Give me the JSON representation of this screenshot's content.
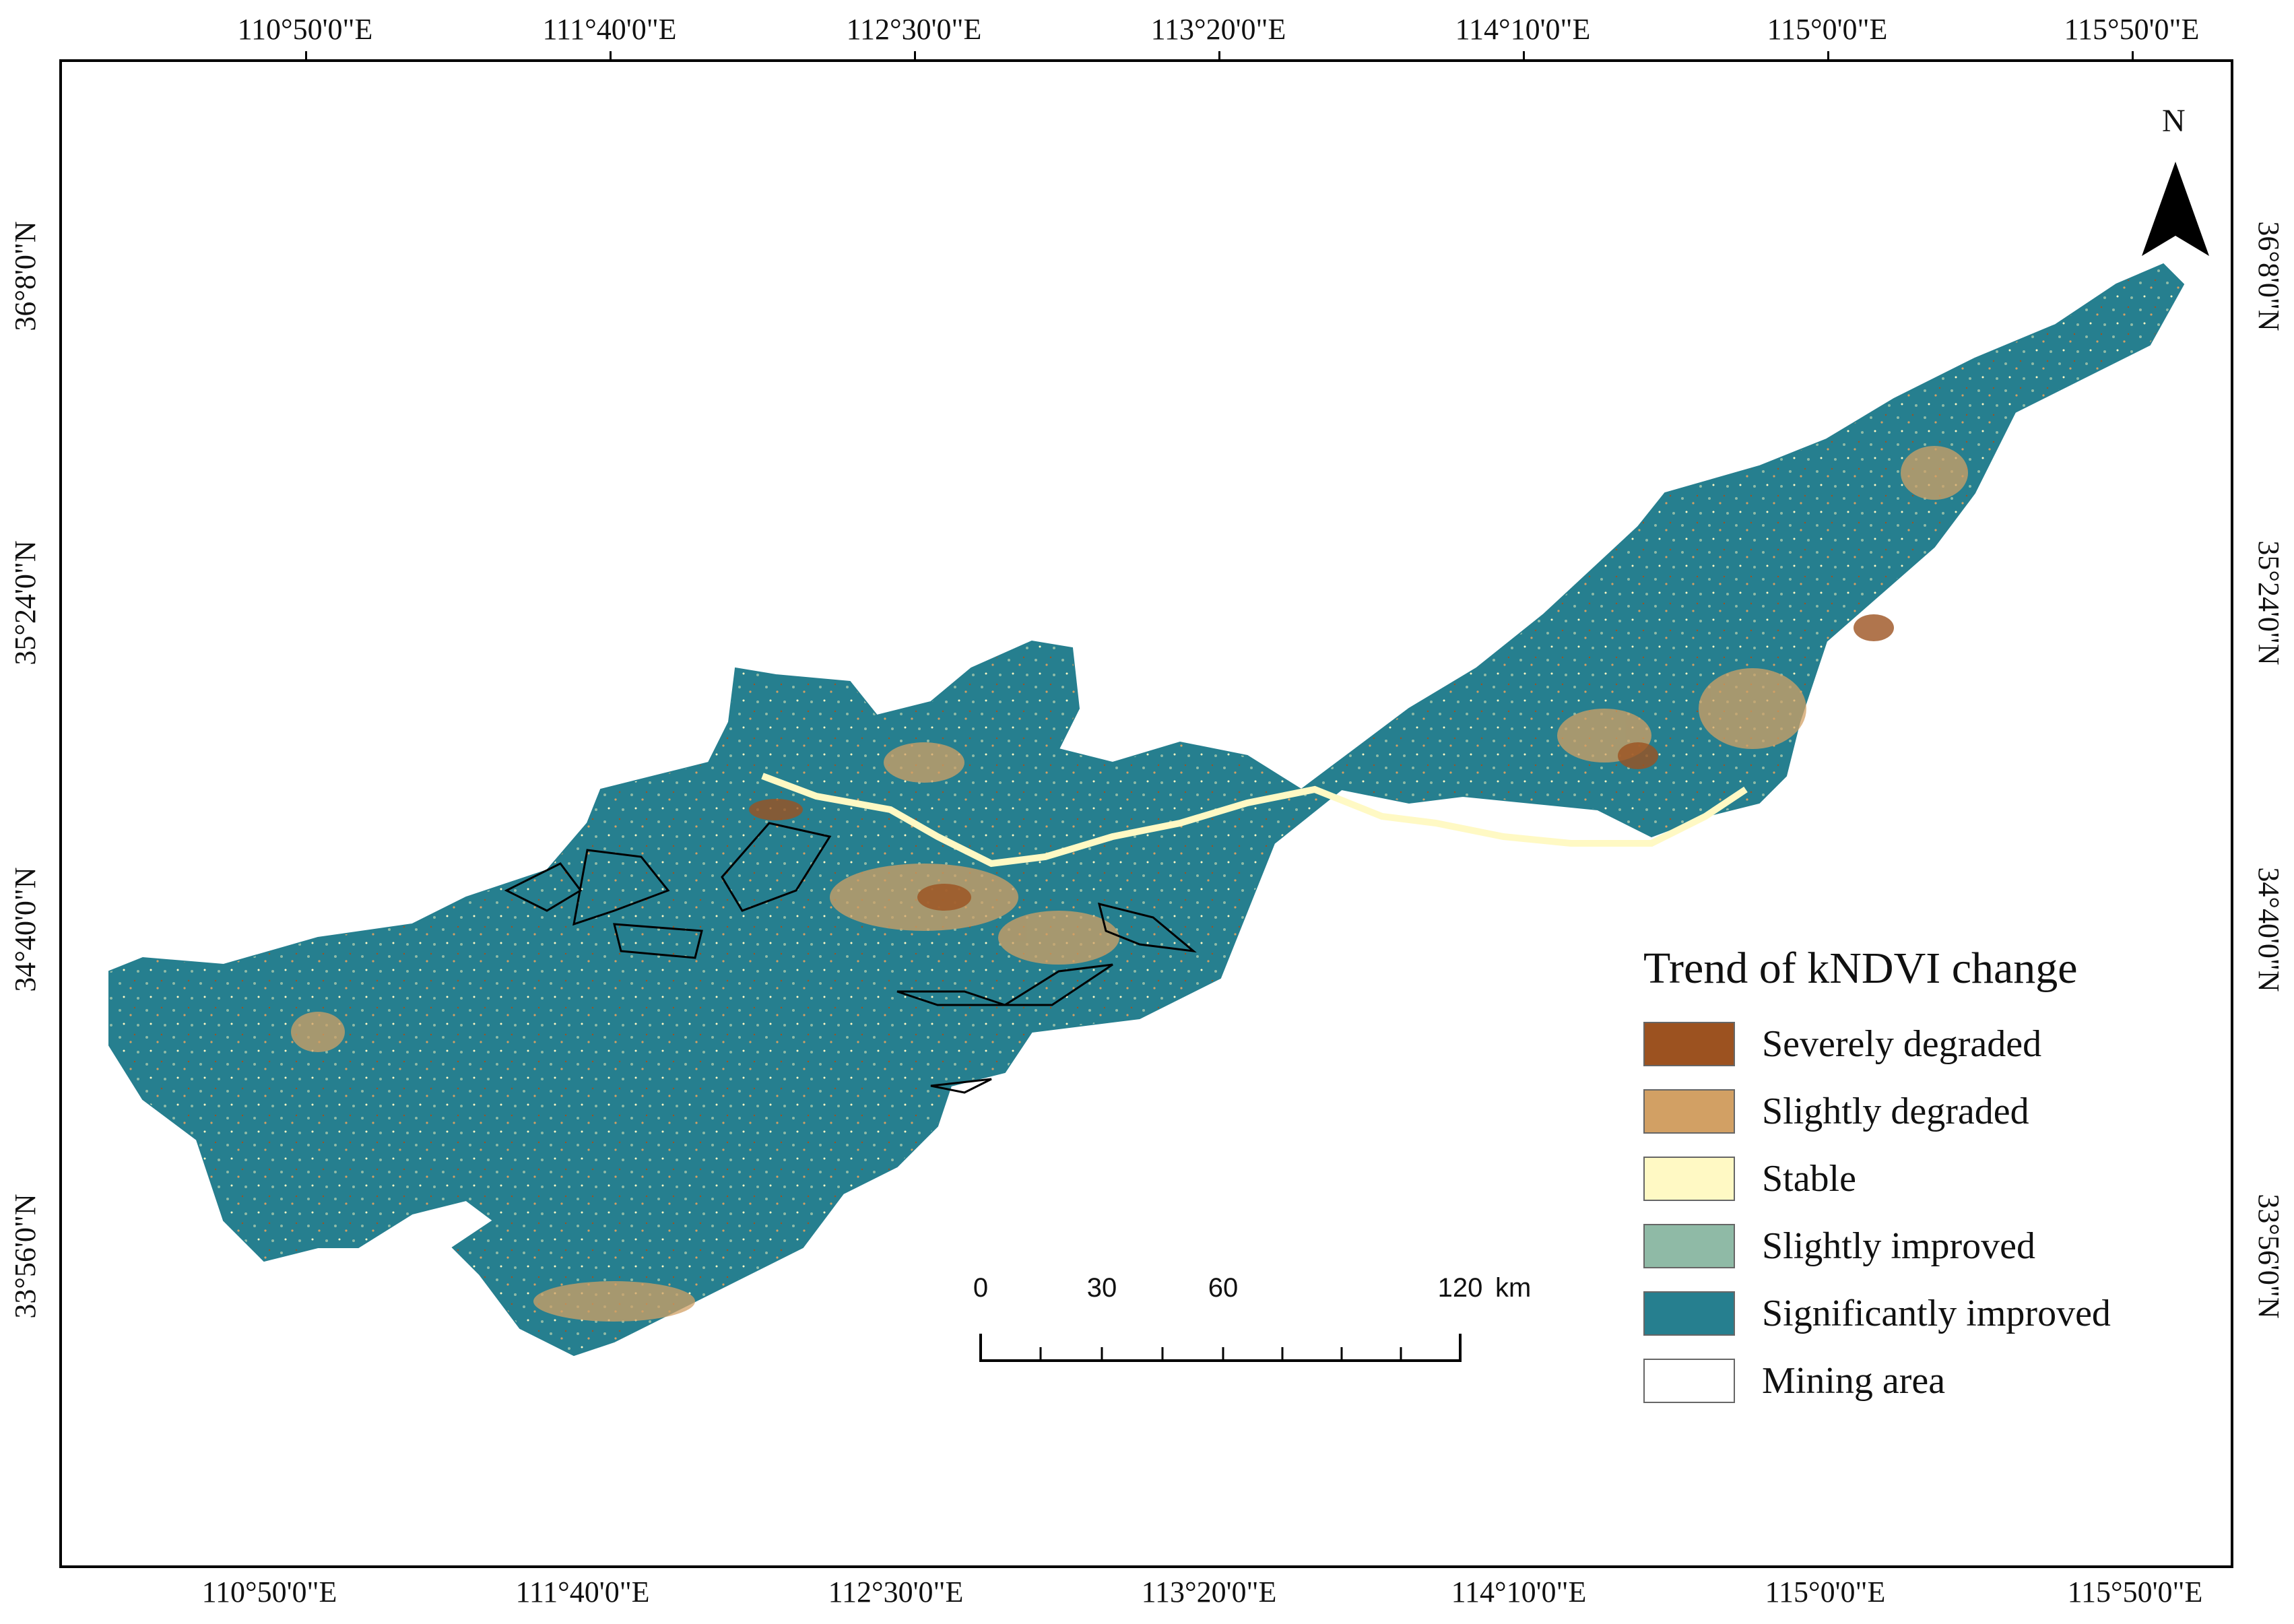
{
  "map": {
    "top_axis_labels": [
      "110°50'0\"E",
      "111°40'0\"E",
      "112°30'0\"E",
      "113°20'0\"E",
      "114°10'0\"E",
      "115°0'0\"E",
      "115°50'0\"E"
    ],
    "bottom_axis_labels": [
      "110°50'0\"E",
      "111°40'0\"E",
      "112°30'0\"E",
      "113°20'0\"E",
      "114°10'0\"E",
      "115°0'0\"E",
      "115°50'0\"E"
    ],
    "left_axis_labels": [
      "36°8'0\"N",
      "35°24'0\"N",
      "34°40'0\"N",
      "33°56'0\"N"
    ],
    "right_axis_labels": [
      "36°8'0\"N",
      "35°24'0\"N",
      "34°40'0\"N",
      "33°56'0\"N"
    ]
  },
  "legend": {
    "title": "Trend of kNDVI change",
    "items": [
      {
        "label": "Severely degraded",
        "color": "#9c5220"
      },
      {
        "label": "Slightly degraded",
        "color": "#d2a064"
      },
      {
        "label": "Stable",
        "color": "#fff9c4"
      },
      {
        "label": "Slightly improved",
        "color": "#8fbaa6"
      },
      {
        "label": "Significantly improved",
        "color": "#267f8f"
      },
      {
        "label": "Mining area",
        "color": "#ffffff"
      }
    ]
  },
  "north_arrow": {
    "label": "N"
  },
  "scale_bar": {
    "ticks": [
      "0",
      "30",
      "60",
      "120"
    ],
    "unit": "km"
  }
}
